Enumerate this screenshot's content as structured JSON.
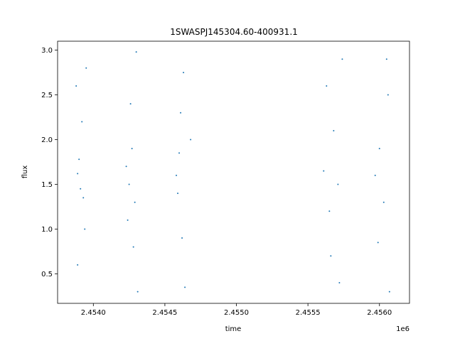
{
  "chart_data": {
    "type": "scatter",
    "title": "1SWASPJ145304.60-400931.1",
    "xlabel": "time",
    "ylabel": "flux",
    "x_offset_label": "1e6",
    "xlim": [
      2.45375,
      2.45621
    ],
    "ylim": [
      0.17,
      3.1
    ],
    "x_ticks": [
      2.454,
      2.4545,
      2.455,
      2.4555,
      2.456
    ],
    "x_tick_labels": [
      "2.4540",
      "2.4545",
      "2.4550",
      "2.4555",
      "2.4560"
    ],
    "y_ticks": [
      0.5,
      1.0,
      1.5,
      2.0,
      2.5,
      3.0
    ],
    "y_tick_labels": [
      "0.5",
      "1.0",
      "1.5",
      "2.0",
      "2.5",
      "3.0"
    ],
    "grid": false,
    "legend": "none",
    "color": "#1f77b4",
    "series": [
      {
        "values": [
          {
            "x": 2.45389,
            "y": 1.62
          },
          {
            "x": 2.4539,
            "y": 1.78
          },
          {
            "x": 2.45391,
            "y": 1.45
          },
          {
            "x": 2.45392,
            "y": 2.2
          },
          {
            "x": 2.45393,
            "y": 1.35
          },
          {
            "x": 2.45388,
            "y": 2.6
          },
          {
            "x": 2.45394,
            "y": 1.0
          },
          {
            "x": 2.45389,
            "y": 0.6
          },
          {
            "x": 2.45395,
            "y": 2.8
          },
          {
            "x": 2.45423,
            "y": 1.7
          },
          {
            "x": 2.45425,
            "y": 1.5
          },
          {
            "x": 2.45427,
            "y": 1.9
          },
          {
            "x": 2.45429,
            "y": 1.3
          },
          {
            "x": 2.45426,
            "y": 2.4
          },
          {
            "x": 2.45428,
            "y": 0.8
          },
          {
            "x": 2.4543,
            "y": 2.98
          },
          {
            "x": 2.45431,
            "y": 0.3
          },
          {
            "x": 2.45424,
            "y": 1.1
          },
          {
            "x": 2.45458,
            "y": 1.6
          },
          {
            "x": 2.45459,
            "y": 1.4
          },
          {
            "x": 2.4546,
            "y": 1.85
          },
          {
            "x": 2.45461,
            "y": 2.3
          },
          {
            "x": 2.45462,
            "y": 0.9
          },
          {
            "x": 2.45463,
            "y": 2.75
          },
          {
            "x": 2.45464,
            "y": 0.35
          },
          {
            "x": 2.45468,
            "y": 2.0
          },
          {
            "x": 2.45561,
            "y": 1.65
          },
          {
            "x": 2.45565,
            "y": 1.2
          },
          {
            "x": 2.45568,
            "y": 2.1
          },
          {
            "x": 2.45571,
            "y": 1.5
          },
          {
            "x": 2.45574,
            "y": 2.9
          },
          {
            "x": 2.45572,
            "y": 0.4
          },
          {
            "x": 2.45563,
            "y": 2.6
          },
          {
            "x": 2.45566,
            "y": 0.7
          },
          {
            "x": 2.45597,
            "y": 1.6
          },
          {
            "x": 2.456,
            "y": 1.9
          },
          {
            "x": 2.45603,
            "y": 1.3
          },
          {
            "x": 2.45606,
            "y": 2.5
          },
          {
            "x": 2.45605,
            "y": 2.9
          },
          {
            "x": 2.45607,
            "y": 0.3
          },
          {
            "x": 2.45599,
            "y": 0.85
          }
        ]
      }
    ]
  }
}
